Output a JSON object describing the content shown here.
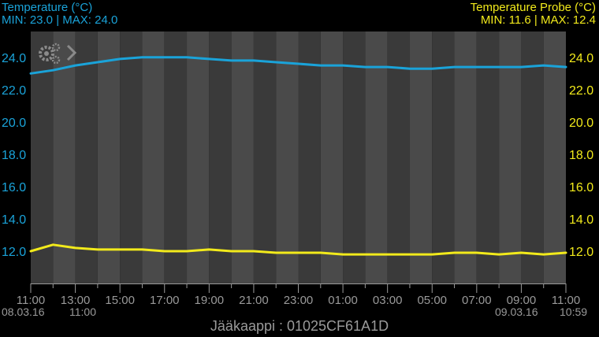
{
  "header": {
    "left_title": "Temperature (°C)",
    "left_minmax": "MIN: 23.0 | MAX: 24.0",
    "right_title": "Temperature Probe (°C)",
    "right_minmax": "MIN: 11.6 | MAX: 12.4"
  },
  "footer": {
    "device_label": "Jääkaappi : 01025CF61A1D"
  },
  "dates": {
    "start_date": "08.03.16",
    "start_time": "11:00",
    "end_date": "09.03.16",
    "end_time": "10:59"
  },
  "icons": {
    "settings": "gears-icon",
    "next": "chevron-right-icon"
  },
  "colors": {
    "temperature": "#1aa3d9",
    "probe": "#f2ea1b",
    "axis_text": "#9a9a9a"
  },
  "chart_data": {
    "type": "line",
    "x_unit": "hour",
    "x_range": [
      0,
      24
    ],
    "x_tick_labels": [
      "11:00",
      "13:00",
      "15:00",
      "17:00",
      "19:00",
      "21:00",
      "23:00",
      "01:00",
      "03:00",
      "05:00",
      "07:00",
      "09:00",
      "11:00"
    ],
    "y_left_ticks": [
      "12.0",
      "14.0",
      "16.0",
      "18.0",
      "20.0",
      "22.0",
      "24.0"
    ],
    "y_right_ticks": [
      "12.0",
      "14.0",
      "16.0",
      "18.0",
      "20.0",
      "22.0",
      "24.0"
    ],
    "ylim": [
      10.0,
      25.6
    ],
    "grid": "alternating vertical bands (hourly)",
    "series": [
      {
        "name": "Temperature (°C)",
        "axis": "left",
        "color": "#1aa3d9",
        "x": [
          0,
          1,
          2,
          3,
          4,
          5,
          6,
          7,
          8,
          9,
          10,
          11,
          12,
          13,
          14,
          15,
          16,
          17,
          18,
          19,
          20,
          21,
          22,
          23,
          24
        ],
        "values": [
          23.0,
          23.2,
          23.5,
          23.7,
          23.9,
          24.0,
          24.0,
          24.0,
          23.9,
          23.8,
          23.8,
          23.7,
          23.6,
          23.5,
          23.5,
          23.4,
          23.4,
          23.3,
          23.3,
          23.4,
          23.4,
          23.4,
          23.4,
          23.5,
          23.4
        ]
      },
      {
        "name": "Temperature Probe (°C)",
        "axis": "right",
        "color": "#f2ea1b",
        "x": [
          0,
          1,
          2,
          3,
          4,
          5,
          6,
          7,
          8,
          9,
          10,
          11,
          12,
          13,
          14,
          15,
          16,
          17,
          18,
          19,
          20,
          21,
          22,
          23,
          24
        ],
        "values": [
          12.0,
          12.4,
          12.2,
          12.1,
          12.1,
          12.1,
          12.0,
          12.0,
          12.1,
          12.0,
          12.0,
          11.9,
          11.9,
          11.9,
          11.8,
          11.8,
          11.8,
          11.8,
          11.8,
          11.9,
          11.9,
          11.8,
          11.9,
          11.8,
          11.9
        ]
      }
    ]
  }
}
